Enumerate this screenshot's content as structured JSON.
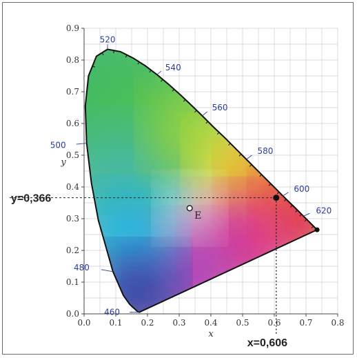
{
  "chart_data": {
    "type": "scatter",
    "title": "",
    "xlabel": "x",
    "ylabel": "y",
    "xlim": [
      0,
      0.8
    ],
    "ylim": [
      0,
      0.9
    ],
    "x_ticks": [
      "0.0",
      "0.1",
      "0.2",
      "0.3",
      "0.4",
      "0.5",
      "0.6",
      "0.7",
      "0.8"
    ],
    "y_ticks": [
      "0.0",
      "0.1",
      "0.2",
      "0.3",
      "0.4",
      "0.5",
      "0.6",
      "0.7",
      "0.8",
      "0.9"
    ],
    "grid": true,
    "spectral_locus": [
      {
        "x": 0.174,
        "y": 0.005
      },
      {
        "x": 0.169,
        "y": 0.007
      },
      {
        "x": 0.144,
        "y": 0.03
      },
      {
        "x": 0.124,
        "y": 0.058
      },
      {
        "x": 0.091,
        "y": 0.133
      },
      {
        "x": 0.045,
        "y": 0.295
      },
      {
        "x": 0.023,
        "y": 0.413
      },
      {
        "x": 0.008,
        "y": 0.538
      },
      {
        "x": 0.004,
        "y": 0.655
      },
      {
        "x": 0.014,
        "y": 0.75
      },
      {
        "x": 0.039,
        "y": 0.812
      },
      {
        "x": 0.074,
        "y": 0.834
      },
      {
        "x": 0.115,
        "y": 0.826
      },
      {
        "x": 0.155,
        "y": 0.806
      },
      {
        "x": 0.193,
        "y": 0.782
      },
      {
        "x": 0.23,
        "y": 0.754
      },
      {
        "x": 0.266,
        "y": 0.724
      },
      {
        "x": 0.302,
        "y": 0.692
      },
      {
        "x": 0.337,
        "y": 0.659
      },
      {
        "x": 0.373,
        "y": 0.624
      },
      {
        "x": 0.408,
        "y": 0.589
      },
      {
        "x": 0.444,
        "y": 0.555
      },
      {
        "x": 0.479,
        "y": 0.52
      },
      {
        "x": 0.512,
        "y": 0.487
      },
      {
        "x": 0.545,
        "y": 0.454
      },
      {
        "x": 0.575,
        "y": 0.424
      },
      {
        "x": 0.603,
        "y": 0.396
      },
      {
        "x": 0.627,
        "y": 0.372
      },
      {
        "x": 0.648,
        "y": 0.351
      },
      {
        "x": 0.666,
        "y": 0.334
      },
      {
        "x": 0.68,
        "y": 0.32
      },
      {
        "x": 0.692,
        "y": 0.308
      },
      {
        "x": 0.712,
        "y": 0.288
      },
      {
        "x": 0.735,
        "y": 0.265
      }
    ],
    "wavelength_labels": [
      {
        "text": "460",
        "x": 0.174,
        "y": 0.005
      },
      {
        "text": "480",
        "x": 0.091,
        "y": 0.133
      },
      {
        "text": "500",
        "x": 0.008,
        "y": 0.538
      },
      {
        "text": "520",
        "x": 0.074,
        "y": 0.834
      },
      {
        "text": "540",
        "x": 0.23,
        "y": 0.754
      },
      {
        "text": "560",
        "x": 0.373,
        "y": 0.624
      },
      {
        "text": "580",
        "x": 0.512,
        "y": 0.487
      },
      {
        "text": "600",
        "x": 0.627,
        "y": 0.372
      },
      {
        "text": "620",
        "x": 0.692,
        "y": 0.308
      }
    ],
    "white_point": {
      "label": "E",
      "x": 0.333,
      "y": 0.333
    },
    "marked_point": {
      "x": 0.606,
      "y": 0.366
    },
    "callouts": {
      "x_text": "x=0,606",
      "y_text": "y=0,366"
    }
  }
}
